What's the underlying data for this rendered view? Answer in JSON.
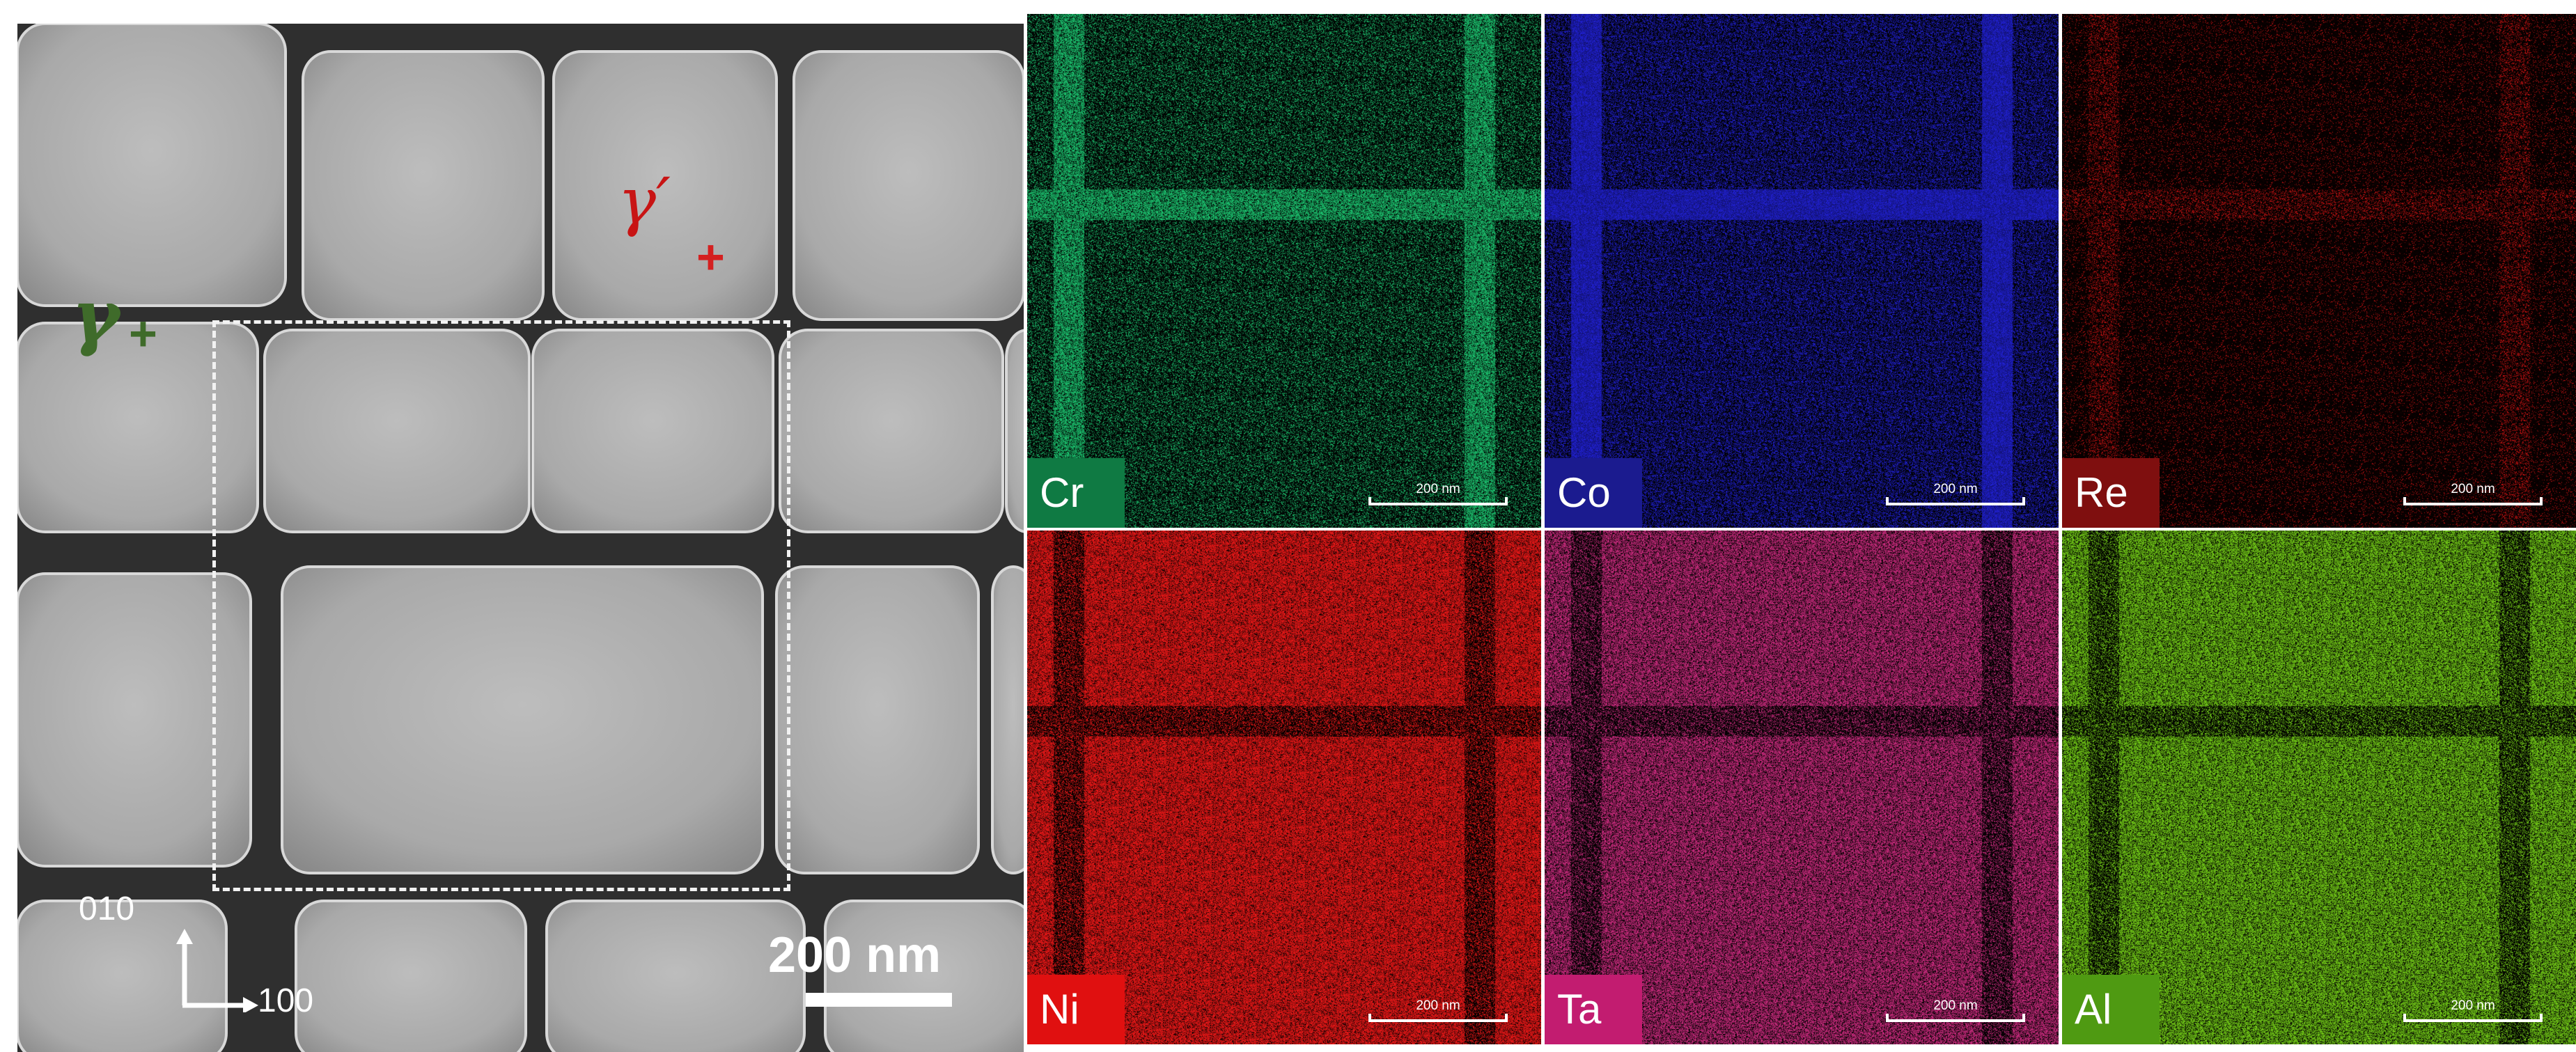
{
  "micrograph": {
    "phase_gamma_prime": "γ′",
    "phase_gamma": "γ",
    "phase_marker": "+",
    "axis_vertical": "010",
    "axis_horizontal": "100",
    "scale_bar": "200 nm"
  },
  "eds_maps": [
    {
      "element": "Cr",
      "scale_bar": "200 nm",
      "color": "#1fd67a",
      "badge_color": "#0f7a43"
    },
    {
      "element": "Co",
      "scale_bar": "200 nm",
      "color": "#2323e0",
      "badge_color": "#1b1b8f"
    },
    {
      "element": "Re",
      "scale_bar": "200 nm",
      "color": "#e01414",
      "badge_color": "#7f0f0f"
    },
    {
      "element": "Ni",
      "scale_bar": "200 nm",
      "color": "#ff1a1a",
      "badge_color": "#e01010"
    },
    {
      "element": "Ta",
      "scale_bar": "200 nm",
      "color": "#e0308c",
      "badge_color": "#c21c70"
    },
    {
      "element": "Al",
      "scale_bar": "200 nm",
      "color": "#7fe01a",
      "badge_color": "#4f9a12"
    }
  ]
}
